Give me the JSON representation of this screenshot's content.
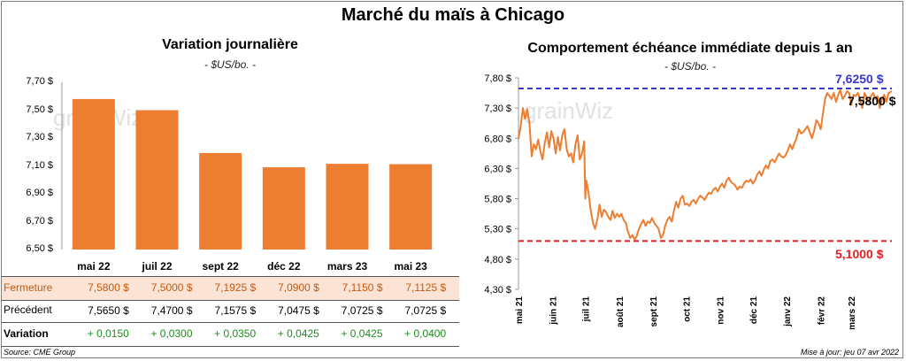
{
  "title": "Marché du maïs à Chicago",
  "watermark": "grainWiz",
  "colors": {
    "bar": "#ED7D31",
    "line": "#ED7D31",
    "high": "#3B36C6",
    "low": "#E31E24",
    "fermeture_bg": "#FBE4D5",
    "variation": "#1E8C1E",
    "fermeture_text": "#C55A11"
  },
  "left": {
    "subtitle": "Variation journalière",
    "unit": "- $US/bo. -",
    "chart_data": {
      "type": "bar",
      "title": "Variation journalière",
      "ylabel": "$US/bo.",
      "categories": [
        "mai 22",
        "juil 22",
        "sept 22",
        "déc 22",
        "mars 23",
        "mai 23"
      ],
      "values": [
        7.58,
        7.5,
        7.1925,
        7.09,
        7.115,
        7.1125
      ],
      "ylim": [
        6.5,
        7.7
      ],
      "yticks": [
        "7,70 $",
        "7,50 $",
        "7,30 $",
        "7,10 $",
        "6,90 $",
        "6,70 $",
        "6,50 $"
      ],
      "ytick_values": [
        7.7,
        7.5,
        7.3,
        7.1,
        6.9,
        6.7,
        6.5
      ]
    },
    "table": {
      "fermeture": {
        "label": "Fermeture",
        "values": [
          "7,5800  $",
          "7,5000  $",
          "7,1925  $",
          "7,0900  $",
          "7,1150  $",
          "7,1125  $"
        ]
      },
      "precedent": {
        "label": "Précédent",
        "values": [
          "7,5650  $",
          "7,4700  $",
          "7,1575  $",
          "7,0475  $",
          "7,0725  $",
          "7,0725  $"
        ]
      },
      "variation": {
        "label": "Variation",
        "values": [
          "+ 0,0150",
          "+ 0,0300",
          "+ 0,0350",
          "+ 0,0425",
          "+ 0,0425",
          "+ 0,0400"
        ]
      }
    },
    "source": "Source: CME Group"
  },
  "right": {
    "subtitle": "Comportement  échéance immédiate depuis 1 an",
    "unit": "- $US/bo. -",
    "high_label": "7,6250 $",
    "last_label": "7,5800 $",
    "low_label": "5,1000 $",
    "update": "Mise à jour: jeu 07 avr 2022",
    "chart_data": {
      "type": "line",
      "title": "Comportement échéance immédiate depuis 1 an",
      "ylabel": "$US/bo.",
      "ylim": [
        4.3,
        7.8
      ],
      "yticks": [
        "7,80 $",
        "7,30 $",
        "6,80 $",
        "6,30 $",
        "5,80 $",
        "5,30 $",
        "4,80 $",
        "4,30 $"
      ],
      "ytick_values": [
        7.8,
        7.3,
        6.8,
        6.3,
        5.8,
        5.3,
        4.8,
        4.3
      ],
      "xticks": [
        "mai 21",
        "juin 21",
        "juil 21",
        "août 21",
        "sept 21",
        "oct 21",
        "nov 21",
        "déc 21",
        "janv 22",
        "févr 22",
        "mars 22"
      ],
      "xtick_days": [
        0,
        31,
        61,
        92,
        123,
        153,
        184,
        214,
        245,
        276,
        304
      ],
      "x_span_days": 341,
      "reference_lines": [
        {
          "name": "max",
          "value": 7.625
        },
        {
          "name": "min",
          "value": 5.1
        }
      ],
      "series": [
        {
          "name": "Échéance immédiate",
          "points": [
            [
              0,
              6.79
            ],
            [
              2,
              7.0
            ],
            [
              4,
              7.3
            ],
            [
              6,
              7.12
            ],
            [
              8,
              7.28
            ],
            [
              10,
              7.05
            ],
            [
              12,
              6.5
            ],
            [
              14,
              6.7
            ],
            [
              16,
              6.62
            ],
            [
              18,
              6.78
            ],
            [
              20,
              6.58
            ],
            [
              22,
              6.45
            ],
            [
              24,
              6.72
            ],
            [
              26,
              6.9
            ],
            [
              28,
              6.65
            ],
            [
              30,
              6.92
            ],
            [
              32,
              6.8
            ],
            [
              34,
              6.55
            ],
            [
              36,
              6.82
            ],
            [
              38,
              6.6
            ],
            [
              40,
              6.85
            ],
            [
              42,
              6.95
            ],
            [
              44,
              6.62
            ],
            [
              46,
              6.5
            ],
            [
              48,
              6.55
            ],
            [
              50,
              6.4
            ],
            [
              52,
              6.7
            ],
            [
              54,
              6.85
            ],
            [
              56,
              6.45
            ],
            [
              58,
              6.55
            ],
            [
              60,
              6.75
            ],
            [
              61,
              5.8
            ],
            [
              62,
              6.1
            ],
            [
              64,
              5.9
            ],
            [
              66,
              5.6
            ],
            [
              68,
              5.4
            ],
            [
              70,
              5.3
            ],
            [
              72,
              5.45
            ],
            [
              74,
              5.7
            ],
            [
              76,
              5.5
            ],
            [
              78,
              5.62
            ],
            [
              80,
              5.58
            ],
            [
              82,
              5.5
            ],
            [
              84,
              5.45
            ],
            [
              86,
              5.6
            ],
            [
              88,
              5.48
            ],
            [
              90,
              5.55
            ],
            [
              92,
              5.5
            ],
            [
              94,
              5.55
            ],
            [
              96,
              5.45
            ],
            [
              98,
              5.4
            ],
            [
              100,
              5.25
            ],
            [
              102,
              5.15
            ],
            [
              104,
              5.2
            ],
            [
              106,
              5.12
            ],
            [
              108,
              5.18
            ],
            [
              110,
              5.3
            ],
            [
              112,
              5.38
            ],
            [
              114,
              5.45
            ],
            [
              116,
              5.35
            ],
            [
              118,
              5.42
            ],
            [
              120,
              5.4
            ],
            [
              122,
              5.48
            ],
            [
              124,
              5.4
            ],
            [
              126,
              5.35
            ],
            [
              128,
              5.3
            ],
            [
              130,
              5.15
            ],
            [
              132,
              5.2
            ],
            [
              134,
              5.35
            ],
            [
              136,
              5.45
            ],
            [
              138,
              5.5
            ],
            [
              140,
              5.42
            ],
            [
              142,
              5.6
            ],
            [
              144,
              5.75
            ],
            [
              146,
              5.65
            ],
            [
              148,
              5.8
            ],
            [
              150,
              5.85
            ],
            [
              152,
              5.7
            ],
            [
              154,
              5.72
            ],
            [
              156,
              5.68
            ],
            [
              158,
              5.75
            ],
            [
              160,
              5.78
            ],
            [
              162,
              5.72
            ],
            [
              164,
              5.8
            ],
            [
              166,
              5.85
            ],
            [
              168,
              5.82
            ],
            [
              170,
              5.78
            ],
            [
              172,
              5.85
            ],
            [
              174,
              5.9
            ],
            [
              176,
              5.88
            ],
            [
              178,
              5.95
            ],
            [
              180,
              5.98
            ],
            [
              182,
              5.92
            ],
            [
              184,
              6.0
            ],
            [
              186,
              6.05
            ],
            [
              188,
              5.98
            ],
            [
              190,
              6.1
            ],
            [
              192,
              6.15
            ],
            [
              194,
              6.08
            ],
            [
              196,
              6.05
            ],
            [
              198,
              6.02
            ],
            [
              200,
              5.95
            ],
            [
              202,
              6.0
            ],
            [
              204,
              5.98
            ],
            [
              206,
              6.05
            ],
            [
              208,
              6.1
            ],
            [
              210,
              6.08
            ],
            [
              212,
              6.12
            ],
            [
              214,
              6.05
            ],
            [
              216,
              6.1
            ],
            [
              218,
              6.2
            ],
            [
              220,
              6.25
            ],
            [
              222,
              6.18
            ],
            [
              224,
              6.28
            ],
            [
              226,
              6.35
            ],
            [
              228,
              6.3
            ],
            [
              230,
              6.42
            ],
            [
              232,
              6.45
            ],
            [
              234,
              6.4
            ],
            [
              236,
              6.48
            ],
            [
              238,
              6.55
            ],
            [
              240,
              6.5
            ],
            [
              242,
              6.48
            ],
            [
              244,
              6.52
            ],
            [
              246,
              6.6
            ],
            [
              248,
              6.7
            ],
            [
              250,
              6.62
            ],
            [
              252,
              6.72
            ],
            [
              254,
              6.8
            ],
            [
              256,
              6.95
            ],
            [
              258,
              6.88
            ],
            [
              260,
              6.9
            ],
            [
              262,
              6.95
            ],
            [
              264,
              7.0
            ],
            [
              266,
              6.9
            ],
            [
              268,
              6.8
            ],
            [
              270,
              6.92
            ],
            [
              272,
              7.1
            ],
            [
              274,
              7.05
            ],
            [
              276,
              6.95
            ],
            [
              278,
              7.2
            ],
            [
              280,
              7.45
            ],
            [
              282,
              7.55
            ],
            [
              284,
              7.5
            ],
            [
              286,
              7.45
            ],
            [
              288,
              7.55
            ],
            [
              290,
              7.4
            ],
            [
              292,
              7.52
            ],
            [
              294,
              7.6
            ],
            [
              296,
              7.45
            ],
            [
              298,
              7.5
            ],
            [
              300,
              7.58
            ],
            [
              302,
              7.55
            ],
            [
              304,
              7.35
            ],
            [
              306,
              7.52
            ],
            [
              308,
              7.5
            ],
            [
              310,
              7.55
            ],
            [
              312,
              7.45
            ],
            [
              314,
              7.3
            ],
            [
              316,
              7.55
            ],
            [
              318,
              7.48
            ],
            [
              320,
              7.4
            ],
            [
              322,
              7.5
            ],
            [
              324,
              7.55
            ],
            [
              326,
              7.45
            ],
            [
              328,
              7.5
            ],
            [
              330,
              7.3
            ],
            [
              332,
              7.45
            ],
            [
              334,
              7.52
            ],
            [
              336,
              7.4
            ],
            [
              338,
              7.55
            ],
            [
              341,
              7.58
            ]
          ]
        }
      ]
    }
  }
}
